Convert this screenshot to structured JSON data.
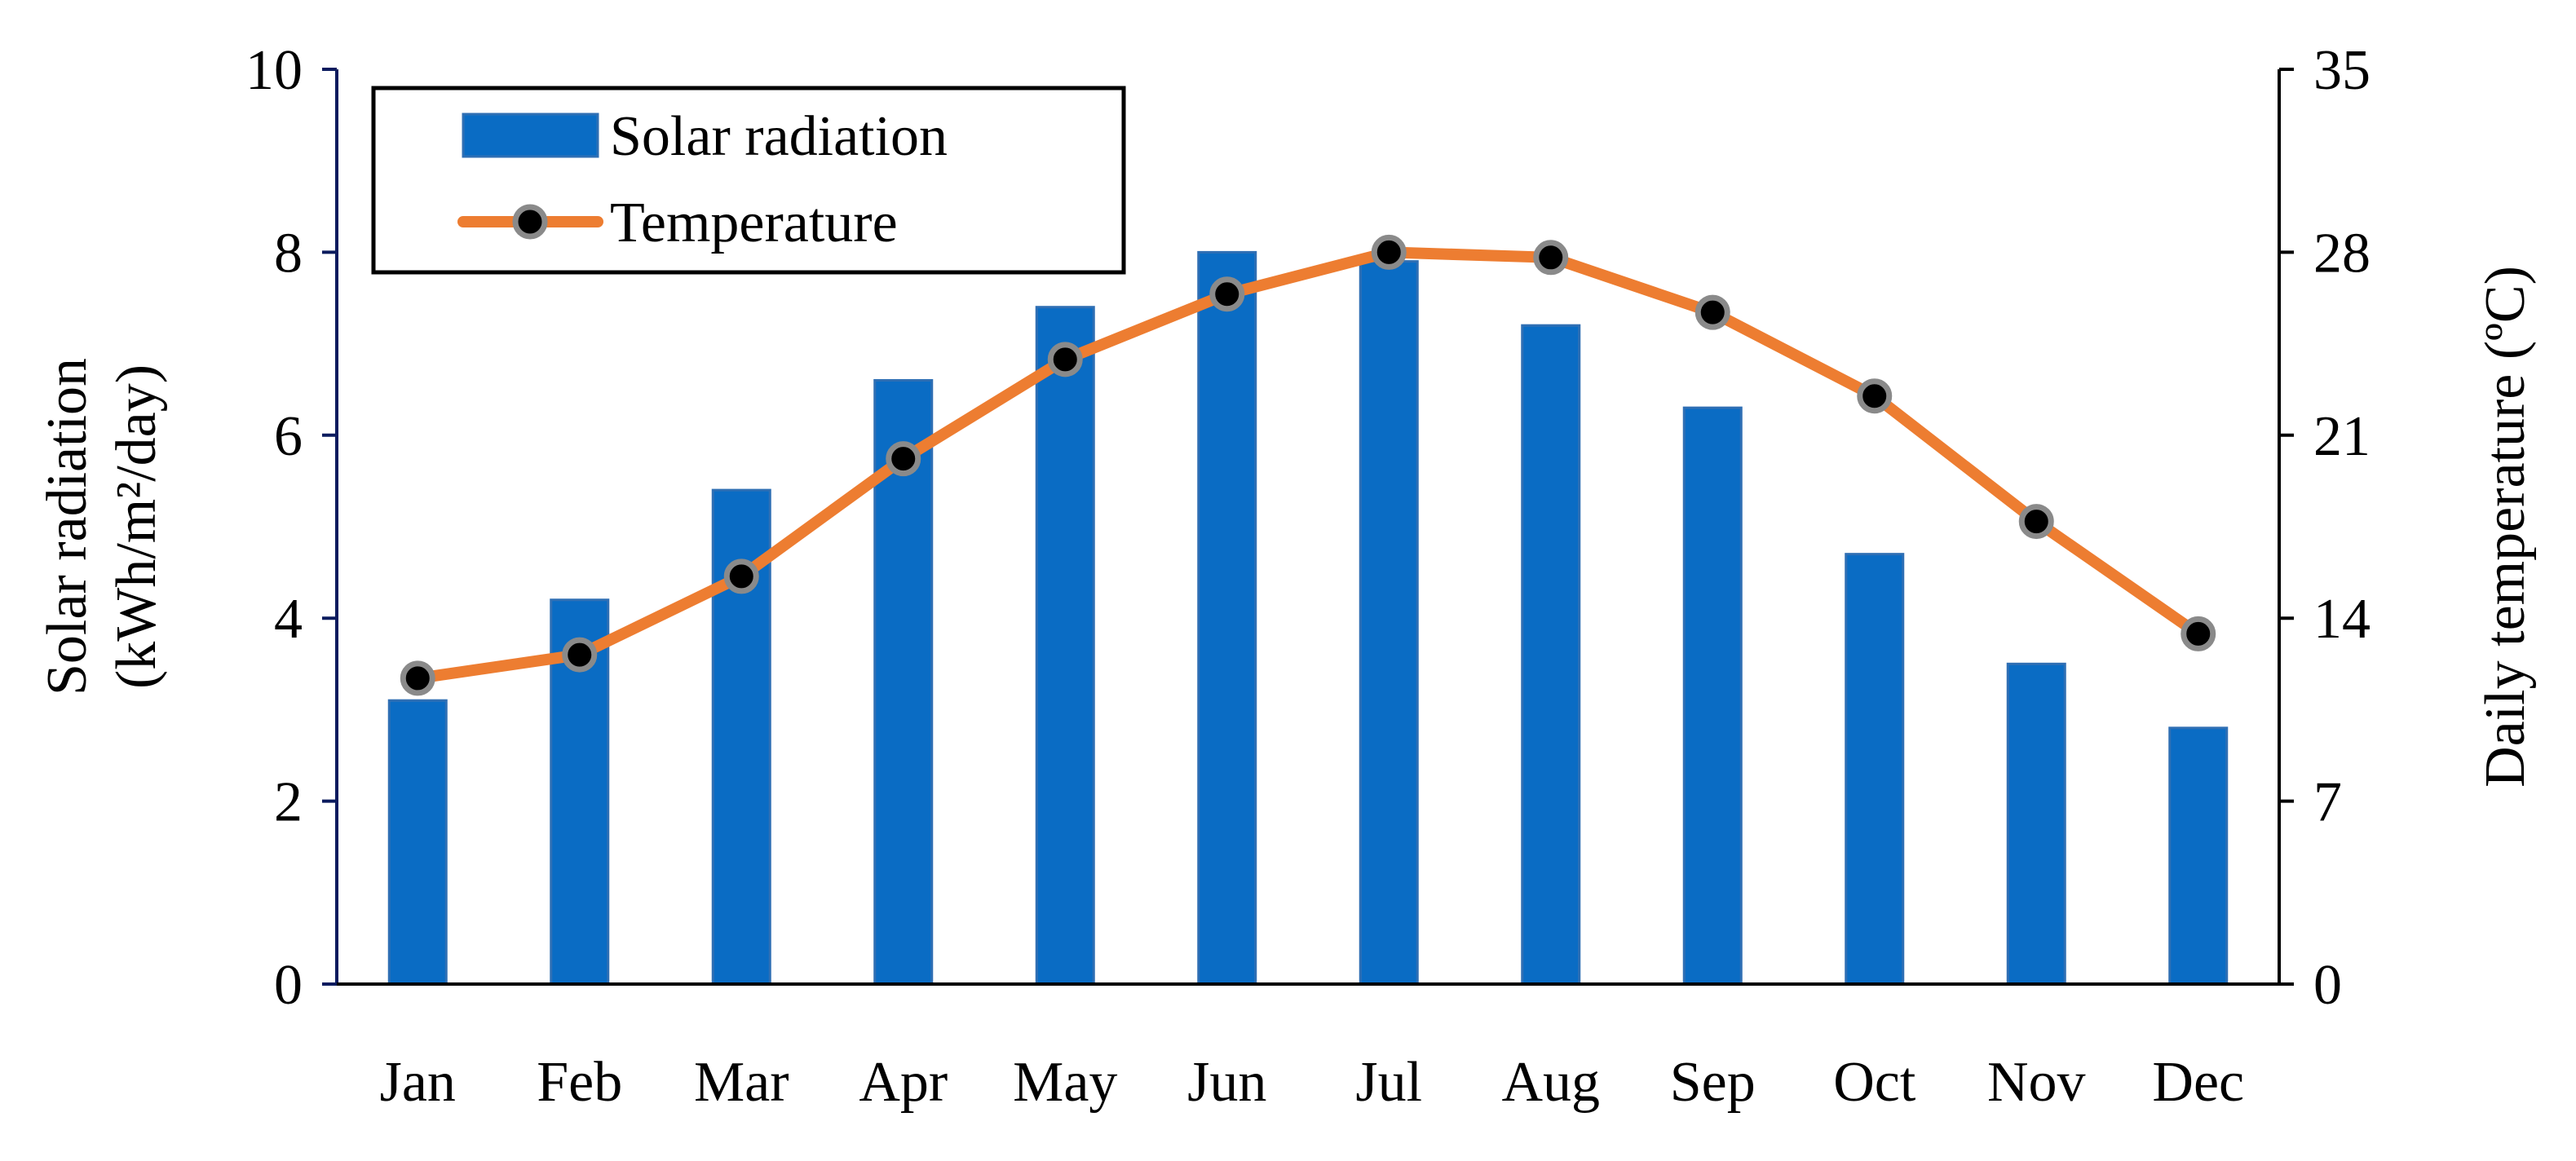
{
  "chart_data": {
    "type": "bar",
    "categories": [
      "Jan",
      "Feb",
      "Mar",
      "Apr",
      "May",
      "Jun",
      "Jul",
      "Aug",
      "Sep",
      "Oct",
      "Nov",
      "Dec"
    ],
    "series": [
      {
        "name": "Solar radiation",
        "type": "bar",
        "axis": "left",
        "color": "#0A6CC4",
        "values": [
          3.1,
          4.2,
          5.4,
          6.6,
          7.4,
          8.0,
          7.9,
          7.2,
          6.3,
          4.7,
          3.5,
          2.8
        ]
      },
      {
        "name": "Temperature",
        "type": "line",
        "axis": "right",
        "color": "#ED7D31",
        "marker_color": "#000000",
        "values": [
          11.7,
          12.6,
          15.6,
          20.1,
          23.9,
          26.4,
          28.0,
          27.8,
          25.7,
          22.5,
          17.7,
          13.4
        ]
      }
    ],
    "ylabel": "Solar radiation",
    "ylabel_unit": "(kWh/m²/day)",
    "ylim": [
      0,
      10
    ],
    "yticks": [
      "0",
      "2",
      "4",
      "6",
      "8",
      "10"
    ],
    "y2label": "Daily temperature (ºC)",
    "y2lim": [
      0,
      35
    ],
    "y2ticks": [
      "0",
      "7",
      "14",
      "21",
      "28",
      "35"
    ],
    "legend_position": "top-left",
    "grid": false
  }
}
